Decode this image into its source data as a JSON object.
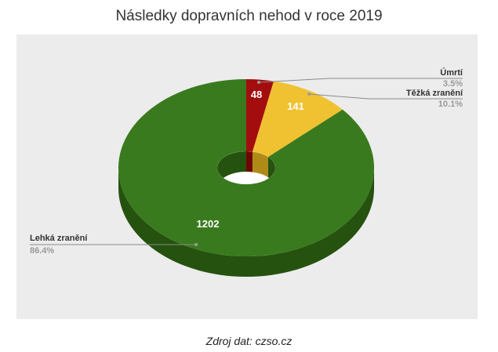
{
  "chart_data": {
    "type": "pie",
    "subtype": "3d-donut",
    "title": "Následky dopravních nehod v roce 2019",
    "source": "Zdroj dat: czso.cz",
    "slices": [
      {
        "label": "Úmrtí",
        "value": 48,
        "percent_label": "3.5%",
        "color": "#a30d0d",
        "side_color": "#6e0606"
      },
      {
        "label": "Těžká zranění",
        "value": 141,
        "percent_label": "10.1%",
        "color": "#f0c232",
        "side_color": "#b08a16"
      },
      {
        "label": "Lehká zranění",
        "value": 1202,
        "percent_label": "86.4%",
        "color": "#3a7a1e",
        "side_color": "#25520f"
      }
    ],
    "legend": "callouts"
  }
}
